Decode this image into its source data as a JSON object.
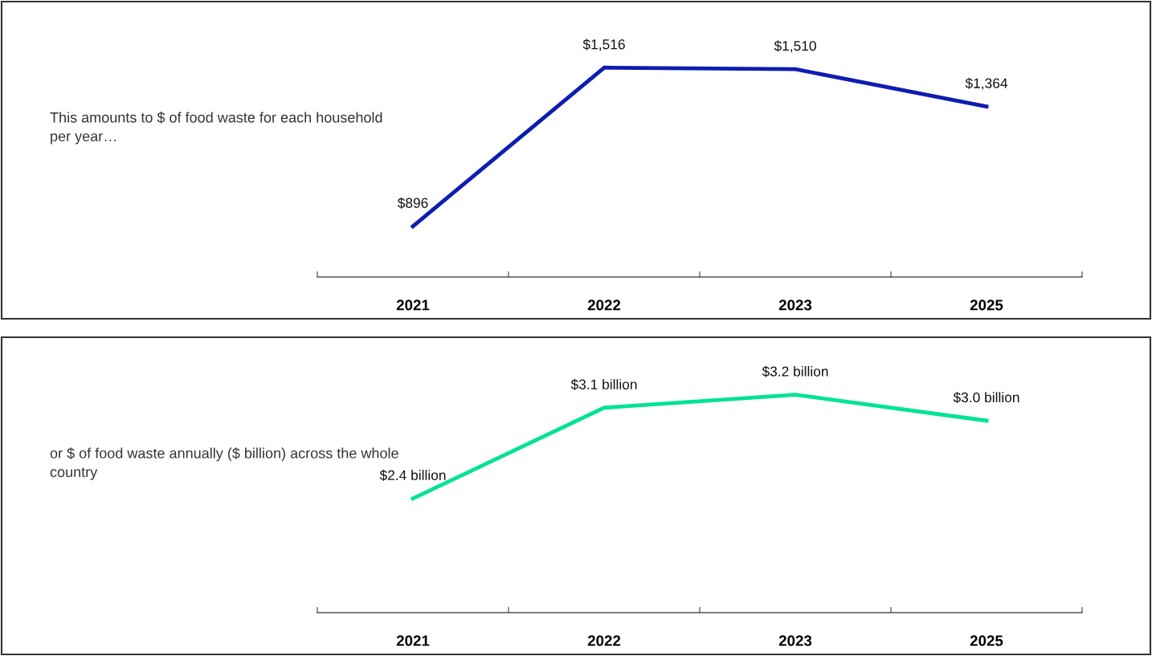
{
  "chart_data": [
    {
      "type": "line",
      "categories": [
        "2021",
        "2022",
        "2023",
        "2025"
      ],
      "series": [
        {
          "color": "#0d1db0",
          "values": [
            896,
            1516,
            1510,
            1364
          ],
          "value_labels": [
            "$896",
            "$1,516",
            "$1,510",
            "$1,364"
          ]
        }
      ],
      "tick_labels": "x",
      "grid": false,
      "legend": false,
      "marker": "none",
      "line_style": "solid",
      "annotations": [
        "This amounts to $ of food waste for each household per year…"
      ]
    },
    {
      "type": "line",
      "categories": [
        "2021",
        "2022",
        "2023",
        "2025"
      ],
      "series": [
        {
          "color": "#00e394",
          "values": [
            2.4,
            3.1,
            3.2,
            3.0
          ],
          "value_labels": [
            "$2.4 billion",
            "$3.1 billion",
            "$3.2 billion",
            "$3.0 billion"
          ]
        }
      ],
      "tick_labels": "x",
      "grid": false,
      "legend": false,
      "marker": "none",
      "line_style": "solid",
      "annotations": [
        "or $ of food waste annually ($ billion) across the whole country"
      ]
    }
  ]
}
